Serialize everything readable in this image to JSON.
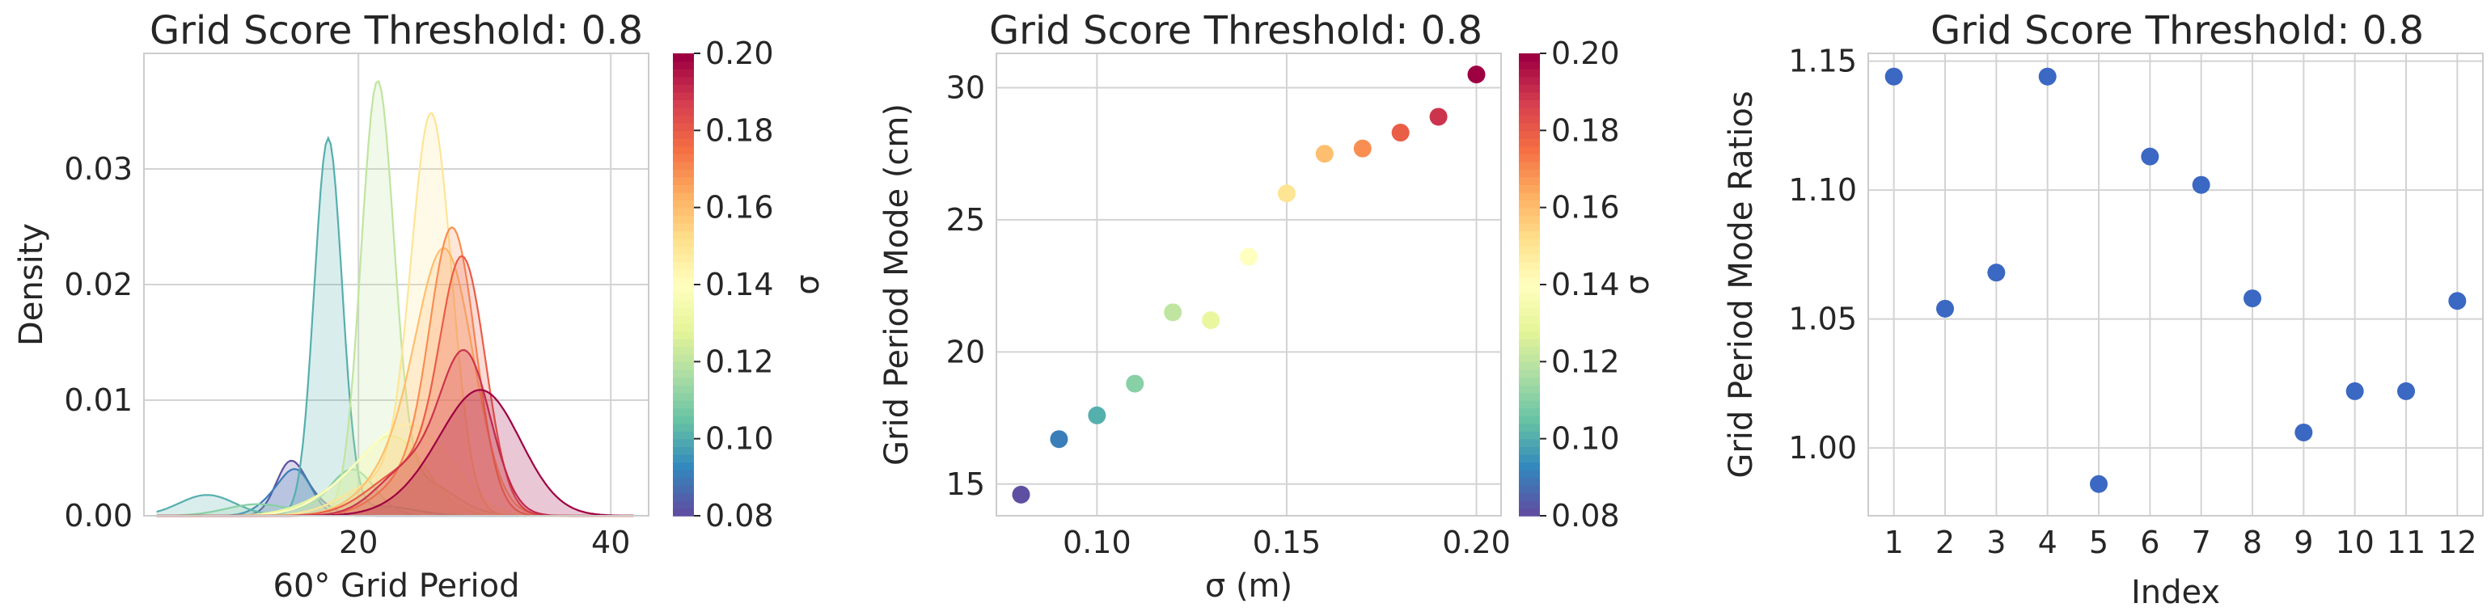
{
  "colormap": [
    "#5e4fa2",
    "#3288bd",
    "#66c2a5",
    "#abdda4",
    "#e6f598",
    "#ffffbf",
    "#fee08b",
    "#fdae61",
    "#f46d43",
    "#d53e4f",
    "#9e0142"
  ],
  "chart_data": [
    {
      "type": "area",
      "title": "Grid Score Threshold: 0.8",
      "xlabel": "60° Grid Period",
      "ylabel": "Density",
      "xlim": [
        3,
        43
      ],
      "ylim": [
        0,
        0.04
      ],
      "xticks": [
        20,
        40
      ],
      "yticks": [
        0.0,
        0.01,
        0.02,
        0.03
      ],
      "ytick_labels": [
        "0.00",
        "0.01",
        "0.02",
        "0.03"
      ],
      "grid": true,
      "colorbar": {
        "label": "σ",
        "range": [
          0.08,
          0.2
        ],
        "ticks": [
          "0.08",
          "0.10",
          "0.12",
          "0.14",
          "0.16",
          "0.18",
          "0.20"
        ]
      },
      "series": [
        {
          "sigma": 0.08,
          "components": [
            [
              14.5,
              1.1,
              0.0038
            ],
            [
              16,
              1.5,
              0.0015
            ]
          ]
        },
        {
          "sigma": 0.09,
          "components": [
            [
              15.2,
              1.2,
              0.0033
            ],
            [
              13.5,
              1.4,
              0.0014
            ]
          ]
        },
        {
          "sigma": 0.1,
          "components": [
            [
              17.6,
              1.1,
              0.0325
            ],
            [
              8,
              2.2,
              0.0018
            ],
            [
              22,
              2.5,
              0.0008
            ]
          ]
        },
        {
          "sigma": 0.11,
          "components": [
            [
              19.5,
              1.8,
              0.004
            ],
            [
              12,
              2.5,
              0.001
            ]
          ]
        },
        {
          "sigma": 0.12,
          "components": [
            [
              21.5,
              1.3,
              0.0365
            ],
            [
              25,
              2.5,
              0.003
            ]
          ]
        },
        {
          "sigma": 0.13,
          "components": [
            [
              23,
              2.5,
              0.006
            ],
            [
              19,
              3,
              0.002
            ]
          ]
        },
        {
          "sigma": 0.14,
          "components": [
            [
              24.5,
              3,
              0.007
            ],
            [
              20,
              3,
              0.0025
            ]
          ]
        },
        {
          "sigma": 0.15,
          "components": [
            [
              25.8,
              1.6,
              0.0335
            ],
            [
              22,
              3,
              0.003
            ]
          ]
        },
        {
          "sigma": 0.16,
          "components": [
            [
              27,
              2.2,
              0.02
            ],
            [
              24,
              3,
              0.005
            ]
          ]
        },
        {
          "sigma": 0.17,
          "components": [
            [
              27.5,
              1.8,
              0.0238
            ],
            [
              24,
              2.5,
              0.003
            ]
          ]
        },
        {
          "sigma": 0.18,
          "components": [
            [
              28.3,
              1.8,
              0.021
            ],
            [
              24,
              3,
              0.004
            ]
          ]
        },
        {
          "sigma": 0.19,
          "components": [
            [
              28.5,
              2.0,
              0.0135
            ],
            [
              24,
              2.5,
              0.004
            ]
          ]
        },
        {
          "sigma": 0.2,
          "components": [
            [
              30,
              3.0,
              0.01
            ],
            [
              26,
              3,
              0.002
            ]
          ]
        }
      ]
    },
    {
      "type": "scatter",
      "title": "Grid Score Threshold: 0.8",
      "xlabel": "σ (m)",
      "ylabel": "Grid Period Mode (cm)",
      "xlim": [
        0.0735,
        0.2065
      ],
      "ylim": [
        13.8,
        31.3
      ],
      "xticks": [
        0.1,
        0.15,
        0.2
      ],
      "xtick_labels": [
        "0.10",
        "0.15",
        "0.20"
      ],
      "yticks": [
        15,
        20,
        25,
        30
      ],
      "grid": true,
      "colorbar": {
        "label": "σ",
        "range": [
          0.08,
          0.2
        ],
        "ticks": [
          "0.08",
          "0.10",
          "0.12",
          "0.14",
          "0.16",
          "0.18",
          "0.20"
        ]
      },
      "x": [
        0.08,
        0.09,
        0.1,
        0.11,
        0.12,
        0.13,
        0.14,
        0.15,
        0.16,
        0.17,
        0.18,
        0.19,
        0.2
      ],
      "y": [
        14.6,
        16.7,
        17.6,
        18.8,
        21.5,
        21.2,
        23.6,
        26.0,
        27.5,
        27.7,
        28.3,
        28.9,
        30.5
      ]
    },
    {
      "type": "scatter",
      "title": "Grid Score Threshold: 0.8",
      "xlabel": "Index",
      "ylabel": "Grid Period Mode Ratios",
      "xlim": [
        0.5,
        12.5
      ],
      "ylim": [
        0.9737,
        1.153
      ],
      "xticks": [
        1,
        2,
        3,
        4,
        5,
        6,
        7,
        8,
        9,
        10,
        11,
        12
      ],
      "yticks": [
        1.0,
        1.05,
        1.1,
        1.15
      ],
      "ytick_labels": [
        "1.00",
        "1.05",
        "1.10",
        "1.15"
      ],
      "grid": true,
      "color": "#3a68c2",
      "x": [
        1,
        2,
        3,
        4,
        5,
        6,
        7,
        8,
        9,
        10,
        11,
        12
      ],
      "y": [
        1.144,
        1.054,
        1.068,
        1.144,
        0.986,
        1.113,
        1.102,
        1.058,
        1.006,
        1.022,
        1.022,
        1.057
      ]
    }
  ]
}
